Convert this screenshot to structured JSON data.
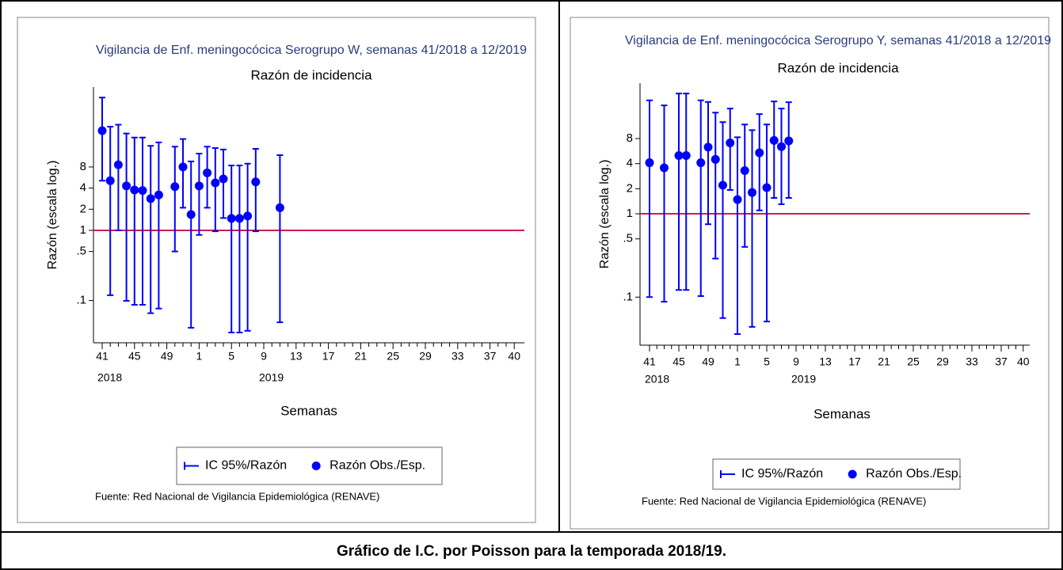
{
  "chart_data": [
    {
      "type": "errorbar",
      "title": "Vigilancia de Enf. meningocócica Serogrupo W, semanas 41/2018 a 12/2019",
      "subtitle": "Razón de incidencia",
      "y_label": "Razón (escala log.)",
      "x_label": "Semanas",
      "source": "Fuente: Red Nacional de Vigilancia Epidemiológica (RENAVE)",
      "year_labels": [
        "2018",
        "2019"
      ],
      "log_y": true,
      "hline": 1,
      "hline_color": "#d01c4b",
      "ylim": [
        0.025,
        110
      ],
      "yticks": [
        {
          "value": 0.1,
          "label": ".1"
        },
        {
          "value": 0.5,
          "label": ".5"
        },
        1,
        2,
        4,
        8
      ],
      "categories": [
        "41",
        null,
        null,
        null,
        "45",
        null,
        null,
        null,
        "49",
        null,
        null,
        null,
        "1",
        null,
        null,
        null,
        "5",
        null,
        null,
        null,
        "9",
        null,
        null,
        null,
        "13",
        null,
        null,
        null,
        "17",
        null,
        null,
        null,
        "21",
        null,
        null,
        null,
        "25",
        null,
        null,
        null,
        "29",
        null,
        null,
        null,
        "33",
        null,
        null,
        null,
        "37",
        null,
        null,
        "40"
      ],
      "series": [
        {
          "name": "IC 95%/Razón",
          "color": "#0000ff",
          "lower": [
            5.1,
            0.119,
            1.0,
            0.099,
            0.087,
            0.087,
            0.066,
            0.077,
            null,
            0.5,
            2.1,
            0.041,
            0.86,
            2.1,
            0.97,
            1.5,
            0.035,
            0.035,
            0.037,
            0.97,
            null,
            null,
            0.049,
            null,
            null,
            null,
            null,
            null,
            null,
            null,
            null,
            null,
            null,
            null,
            null,
            null,
            null,
            null,
            null,
            null,
            null,
            null,
            null,
            null,
            null,
            null,
            null,
            null,
            null,
            null,
            null,
            null
          ],
          "upper": [
            78,
            30,
            32,
            24,
            21,
            21,
            16,
            17.9,
            null,
            15.6,
            20,
            9.6,
            12.4,
            15.6,
            14.9,
            14.2,
            8.4,
            8.4,
            8.9,
            14.5,
            null,
            null,
            11.8,
            null,
            null,
            null,
            null,
            null,
            null,
            null,
            null,
            null,
            null,
            null,
            null,
            null,
            null,
            null,
            null,
            null,
            null,
            null,
            null,
            null,
            null,
            null,
            null,
            null,
            null,
            null,
            null,
            null
          ]
        },
        {
          "name": "Razón Obs./Esp.",
          "color": "#0000ff",
          "values": [
            26.3,
            5.1,
            8.6,
            4.3,
            3.76,
            3.7,
            2.83,
            3.2,
            null,
            4.2,
            8.0,
            1.68,
            4.3,
            6.6,
            4.75,
            5.4,
            1.48,
            1.48,
            1.6,
            4.9,
            null,
            null,
            2.1,
            null,
            null,
            null,
            null,
            null,
            null,
            null,
            null,
            null,
            null,
            null,
            null,
            null,
            null,
            null,
            null,
            null,
            null,
            null,
            null,
            null,
            null,
            null,
            null,
            null,
            null,
            null,
            null,
            null
          ]
        }
      ]
    },
    {
      "type": "errorbar",
      "title": "Vigilancia de Enf. meningocócica Serogrupo Y, semanas 41/2018 a 12/2019",
      "subtitle": "Razón de incidencia",
      "y_label": "Razón (escala log.)",
      "x_label": "Semanas",
      "source": "Fuente: Red Nacional de Vigilancia Epidemiológica (RENAVE)",
      "year_labels": [
        "2018",
        "2019"
      ],
      "log_y": true,
      "hline": 1,
      "hline_color": "#d01c4b",
      "ylim": [
        0.0265,
        37
      ],
      "yticks": [
        {
          "value": 0.1,
          "label": ".1"
        },
        {
          "value": 0.5,
          "label": ".5"
        },
        1,
        2,
        4,
        8
      ],
      "categories": [
        "41",
        null,
        null,
        null,
        "45",
        null,
        null,
        null,
        "49",
        null,
        null,
        null,
        "1",
        null,
        null,
        null,
        "5",
        null,
        null,
        null,
        "9",
        null,
        null,
        null,
        "13",
        null,
        null,
        null,
        "17",
        null,
        null,
        null,
        "21",
        null,
        null,
        null,
        "25",
        null,
        null,
        null,
        "29",
        null,
        null,
        null,
        "33",
        null,
        null,
        null,
        "37",
        null,
        null,
        "40"
      ],
      "series": [
        {
          "name": "IC 95%/Razón",
          "color": "#0000ff",
          "lower": [
            0.1,
            null,
            0.088,
            null,
            0.122,
            0.122,
            null,
            0.103,
            0.75,
            0.29,
            0.056,
            1.93,
            0.036,
            0.4,
            0.044,
            1.1,
            0.051,
            1.55,
            1.3,
            1.55,
            null,
            null,
            null,
            null,
            null,
            null,
            null,
            null,
            null,
            null,
            null,
            null,
            null,
            null,
            null,
            null,
            null,
            null,
            null,
            null,
            null,
            null,
            null,
            null,
            null,
            null,
            null,
            null,
            null,
            null,
            null,
            null
          ],
          "upper": [
            23,
            null,
            20,
            null,
            27.8,
            27.8,
            null,
            23,
            22,
            16.4,
            12.6,
            18.3,
            8.3,
            11.8,
            10.1,
            15.7,
            11.8,
            22.3,
            18.3,
            21.8,
            null,
            null,
            null,
            null,
            null,
            null,
            null,
            null,
            null,
            null,
            null,
            null,
            null,
            null,
            null,
            null,
            null,
            null,
            null,
            null,
            null,
            null,
            null,
            null,
            null,
            null,
            null,
            null,
            null,
            null,
            null,
            null
          ]
        },
        {
          "name": "Razón Obs./Esp.",
          "color": "#0000ff",
          "values": [
            4.1,
            null,
            3.56,
            null,
            5.0,
            5.0,
            null,
            4.1,
            6.3,
            4.5,
            2.2,
            7.1,
            1.48,
            3.3,
            1.8,
            5.4,
            2.06,
            7.6,
            6.4,
            7.5,
            null,
            null,
            null,
            null,
            null,
            null,
            null,
            null,
            null,
            null,
            null,
            null,
            null,
            null,
            null,
            null,
            null,
            null,
            null,
            null,
            null,
            null,
            null,
            null,
            null,
            null,
            null,
            null,
            null,
            null,
            null,
            null
          ]
        }
      ]
    }
  ],
  "caption": "Gráfico de I.C. por Poisson para la temporada 2018/19."
}
